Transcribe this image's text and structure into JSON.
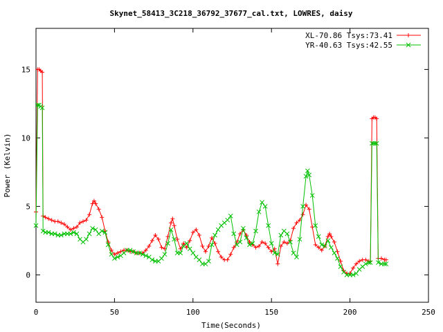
{
  "chart_data": {
    "type": "line",
    "title": "Skynet_58413_3C218_36792_37677_cal.txt, LOWRES, daisy",
    "xlabel": "Time(Seconds)",
    "ylabel": "Power (Kelvin)",
    "xlim": [
      0,
      250
    ],
    "ylim": [
      -2,
      18
    ],
    "xticks": [
      0,
      50,
      100,
      150,
      200,
      250
    ],
    "yticks": [
      0,
      5,
      10,
      15
    ],
    "xtick_labels": [
      "0",
      "50",
      "100",
      "150",
      "200",
      "250"
    ],
    "ytick_labels": [
      "0",
      "5",
      "10",
      "15"
    ],
    "grid": false,
    "legend_position": "top-right",
    "series": [
      {
        "name": "XL-70.86 Tsys:73.41",
        "color": "#ff0000",
        "marker": "plus",
        "points": [
          [
            0,
            4.6
          ],
          [
            1,
            15.0
          ],
          [
            2,
            15.0
          ],
          [
            3,
            14.9
          ],
          [
            4,
            14.8
          ],
          [
            4.5,
            4.3
          ],
          [
            6,
            4.2
          ],
          [
            8,
            4.1
          ],
          [
            10,
            4.0
          ],
          [
            12,
            3.9
          ],
          [
            14,
            3.9
          ],
          [
            16,
            3.8
          ],
          [
            18,
            3.7
          ],
          [
            20,
            3.5
          ],
          [
            22,
            3.3
          ],
          [
            24,
            3.4
          ],
          [
            26,
            3.5
          ],
          [
            28,
            3.8
          ],
          [
            30,
            3.9
          ],
          [
            32,
            4.0
          ],
          [
            34,
            4.4
          ],
          [
            36,
            5.2
          ],
          [
            37,
            5.4
          ],
          [
            38,
            5.2
          ],
          [
            40,
            4.8
          ],
          [
            42,
            4.2
          ],
          [
            44,
            3.2
          ],
          [
            46,
            2.4
          ],
          [
            48,
            1.8
          ],
          [
            50,
            1.5
          ],
          [
            52,
            1.6
          ],
          [
            54,
            1.7
          ],
          [
            56,
            1.8
          ],
          [
            58,
            1.8
          ],
          [
            60,
            1.7
          ],
          [
            62,
            1.7
          ],
          [
            64,
            1.6
          ],
          [
            66,
            1.6
          ],
          [
            68,
            1.6
          ],
          [
            70,
            1.8
          ],
          [
            72,
            2.1
          ],
          [
            74,
            2.5
          ],
          [
            76,
            2.9
          ],
          [
            78,
            2.6
          ],
          [
            80,
            2.0
          ],
          [
            82,
            1.9
          ],
          [
            84,
            2.8
          ],
          [
            86,
            3.8
          ],
          [
            87,
            4.1
          ],
          [
            88,
            3.6
          ],
          [
            90,
            2.6
          ],
          [
            92,
            1.9
          ],
          [
            94,
            2.3
          ],
          [
            96,
            2.0
          ],
          [
            98,
            2.5
          ],
          [
            100,
            3.1
          ],
          [
            102,
            3.3
          ],
          [
            104,
            2.9
          ],
          [
            106,
            2.1
          ],
          [
            108,
            1.7
          ],
          [
            110,
            2.1
          ],
          [
            112,
            2.7
          ],
          [
            114,
            2.3
          ],
          [
            116,
            1.7
          ],
          [
            118,
            1.3
          ],
          [
            120,
            1.1
          ],
          [
            122,
            1.1
          ],
          [
            124,
            1.5
          ],
          [
            126,
            2.0
          ],
          [
            128,
            2.4
          ],
          [
            130,
            3.0
          ],
          [
            132,
            3.3
          ],
          [
            134,
            2.9
          ],
          [
            136,
            2.4
          ],
          [
            138,
            2.2
          ],
          [
            140,
            2.0
          ],
          [
            142,
            2.1
          ],
          [
            144,
            2.4
          ],
          [
            146,
            2.3
          ],
          [
            148,
            2.0
          ],
          [
            150,
            1.7
          ],
          [
            152,
            1.9
          ],
          [
            154,
            0.8
          ],
          [
            156,
            2.1
          ],
          [
            158,
            2.4
          ],
          [
            160,
            2.3
          ],
          [
            162,
            2.5
          ],
          [
            164,
            3.4
          ],
          [
            166,
            3.8
          ],
          [
            168,
            4.0
          ],
          [
            170,
            4.4
          ],
          [
            172,
            5.1
          ],
          [
            174,
            4.8
          ],
          [
            176,
            3.5
          ],
          [
            178,
            2.2
          ],
          [
            180,
            2.0
          ],
          [
            182,
            1.8
          ],
          [
            184,
            2.1
          ],
          [
            186,
            2.8
          ],
          [
            187,
            3.0
          ],
          [
            188,
            2.8
          ],
          [
            190,
            2.4
          ],
          [
            192,
            1.7
          ],
          [
            194,
            1.0
          ],
          [
            196,
            0.3
          ],
          [
            198,
            0.1
          ],
          [
            200,
            0.1
          ],
          [
            202,
            0.5
          ],
          [
            204,
            0.8
          ],
          [
            206,
            1.0
          ],
          [
            208,
            1.1
          ],
          [
            210,
            1.1
          ],
          [
            212,
            1.0
          ],
          [
            213,
            1.0
          ],
          [
            214,
            11.4
          ],
          [
            215,
            11.5
          ],
          [
            216,
            11.5
          ],
          [
            217,
            11.4
          ],
          [
            218,
            1.2
          ],
          [
            220,
            1.2
          ],
          [
            222,
            1.1
          ],
          [
            223,
            1.1
          ]
        ]
      },
      {
        "name": "YR-40.63 Tsys:42.55",
        "color": "#00c000",
        "marker": "cross",
        "points": [
          [
            0,
            3.6
          ],
          [
            1,
            12.4
          ],
          [
            2,
            12.4
          ],
          [
            3,
            12.3
          ],
          [
            4,
            12.2
          ],
          [
            4.5,
            3.2
          ],
          [
            6,
            3.1
          ],
          [
            8,
            3.1
          ],
          [
            10,
            3.0
          ],
          [
            12,
            3.0
          ],
          [
            14,
            2.9
          ],
          [
            16,
            2.9
          ],
          [
            18,
            3.0
          ],
          [
            20,
            3.0
          ],
          [
            22,
            3.0
          ],
          [
            24,
            3.1
          ],
          [
            26,
            3.0
          ],
          [
            28,
            2.6
          ],
          [
            30,
            2.4
          ],
          [
            32,
            2.6
          ],
          [
            34,
            3.0
          ],
          [
            36,
            3.4
          ],
          [
            38,
            3.3
          ],
          [
            40,
            3.0
          ],
          [
            42,
            3.2
          ],
          [
            44,
            3.1
          ],
          [
            46,
            2.2
          ],
          [
            48,
            1.5
          ],
          [
            50,
            1.2
          ],
          [
            52,
            1.3
          ],
          [
            54,
            1.4
          ],
          [
            56,
            1.6
          ],
          [
            58,
            1.8
          ],
          [
            60,
            1.8
          ],
          [
            62,
            1.7
          ],
          [
            64,
            1.6
          ],
          [
            66,
            1.6
          ],
          [
            68,
            1.5
          ],
          [
            70,
            1.4
          ],
          [
            72,
            1.3
          ],
          [
            74,
            1.1
          ],
          [
            76,
            1.0
          ],
          [
            78,
            1.0
          ],
          [
            80,
            1.2
          ],
          [
            82,
            1.5
          ],
          [
            84,
            2.3
          ],
          [
            86,
            3.3
          ],
          [
            88,
            2.6
          ],
          [
            90,
            1.6
          ],
          [
            92,
            1.6
          ],
          [
            94,
            2.1
          ],
          [
            96,
            2.3
          ],
          [
            98,
            1.9
          ],
          [
            100,
            1.6
          ],
          [
            102,
            1.3
          ],
          [
            104,
            1.1
          ],
          [
            106,
            0.8
          ],
          [
            108,
            0.8
          ],
          [
            110,
            1.0
          ],
          [
            112,
            2.2
          ],
          [
            114,
            2.9
          ],
          [
            116,
            3.3
          ],
          [
            118,
            3.6
          ],
          [
            120,
            3.8
          ],
          [
            122,
            4.0
          ],
          [
            124,
            4.3
          ],
          [
            126,
            3.0
          ],
          [
            128,
            2.2
          ],
          [
            130,
            2.4
          ],
          [
            132,
            3.4
          ],
          [
            134,
            2.7
          ],
          [
            136,
            2.2
          ],
          [
            138,
            2.3
          ],
          [
            140,
            3.2
          ],
          [
            142,
            4.6
          ],
          [
            144,
            5.3
          ],
          [
            146,
            5.0
          ],
          [
            148,
            3.6
          ],
          [
            150,
            2.3
          ],
          [
            152,
            1.6
          ],
          [
            154,
            1.5
          ],
          [
            156,
            2.9
          ],
          [
            158,
            3.2
          ],
          [
            160,
            3.0
          ],
          [
            162,
            2.4
          ],
          [
            164,
            1.6
          ],
          [
            166,
            1.3
          ],
          [
            168,
            2.6
          ],
          [
            170,
            5.0
          ],
          [
            172,
            7.2
          ],
          [
            173,
            7.6
          ],
          [
            174,
            7.3
          ],
          [
            176,
            5.8
          ],
          [
            178,
            3.6
          ],
          [
            180,
            2.8
          ],
          [
            182,
            2.2
          ],
          [
            184,
            2.1
          ],
          [
            186,
            2.5
          ],
          [
            188,
            2.0
          ],
          [
            190,
            1.6
          ],
          [
            192,
            1.2
          ],
          [
            194,
            0.6
          ],
          [
            196,
            0.2
          ],
          [
            198,
            0.0
          ],
          [
            200,
            0.0
          ],
          [
            202,
            0.0
          ],
          [
            204,
            0.1
          ],
          [
            206,
            0.4
          ],
          [
            208,
            0.6
          ],
          [
            210,
            0.8
          ],
          [
            212,
            0.9
          ],
          [
            213,
            0.9
          ],
          [
            214,
            9.6
          ],
          [
            215,
            9.6
          ],
          [
            216,
            9.6
          ],
          [
            217,
            9.6
          ],
          [
            218,
            0.9
          ],
          [
            220,
            0.8
          ],
          [
            222,
            0.8
          ],
          [
            223,
            0.8
          ]
        ]
      }
    ]
  }
}
